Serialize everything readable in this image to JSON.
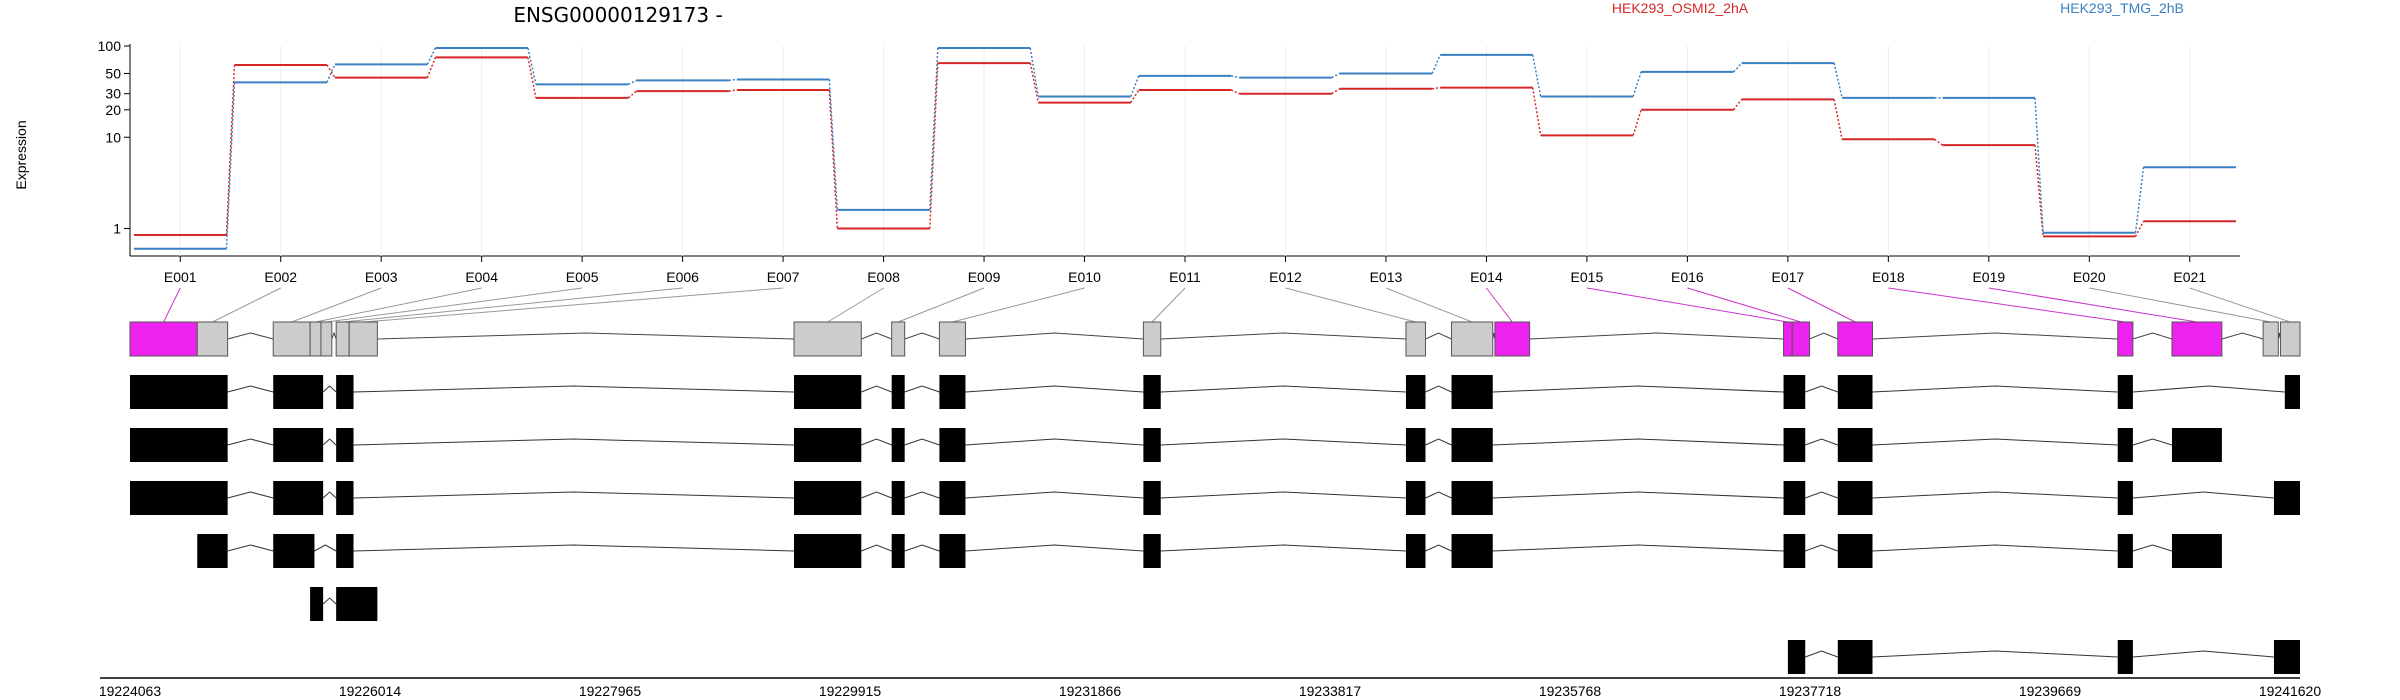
{
  "chart_data": {
    "type": "line",
    "title": "ENSG00000129173 -",
    "ylabel": "Expression",
    "y_scale": "log",
    "y_ticks": [
      1,
      10,
      20,
      30,
      50,
      100
    ],
    "y_tick_labels": [
      "1",
      "10",
      "20",
      "30",
      "50",
      "100"
    ],
    "ylim": [
      0.5,
      100
    ],
    "grid": "vertical",
    "legend_position": "top-right",
    "categories": [
      "E001",
      "E002",
      "E003",
      "E004",
      "E005",
      "E006",
      "E007",
      "E008",
      "E009",
      "E010",
      "E011",
      "E012",
      "E013",
      "E014",
      "E015",
      "E016",
      "E017",
      "E018",
      "E019",
      "E020",
      "E021"
    ],
    "series": [
      {
        "name": "HEK293_OSMI2_2hA",
        "color": "#d62728",
        "values": [
          0.85,
          62,
          45,
          75,
          27,
          32,
          33,
          1.0,
          65,
          24,
          33,
          30,
          34,
          35,
          10.5,
          20,
          26,
          9.5,
          8.2,
          0.82,
          1.2
        ]
      },
      {
        "name": "HEK293_TMG_2hB",
        "color": "#3a7fc1",
        "values": [
          0.6,
          40,
          63,
          95,
          38,
          42,
          43,
          1.6,
          95,
          28,
          47,
          45,
          50,
          80,
          28,
          52,
          65,
          27,
          27,
          0.9,
          4.7
        ]
      }
    ],
    "genomic_ticks": [
      "19224063",
      "19226014",
      "19227965",
      "19229915",
      "19231866",
      "19233817",
      "19235768",
      "19237718",
      "19239669",
      "19241620"
    ],
    "exon_segments": [
      {
        "label": "E001",
        "highlight": true
      },
      {
        "label": "E002",
        "highlight": false
      },
      {
        "label": "E003",
        "highlight": false
      },
      {
        "label": "E004",
        "highlight": false
      },
      {
        "label": "E005",
        "highlight": false
      },
      {
        "label": "E006",
        "highlight": false
      },
      {
        "label": "E007",
        "highlight": false
      },
      {
        "label": "E008",
        "highlight": false
      },
      {
        "label": "E009",
        "highlight": false
      },
      {
        "label": "E010",
        "highlight": false
      },
      {
        "label": "E011",
        "highlight": false
      },
      {
        "label": "E012",
        "highlight": false
      },
      {
        "label": "E013",
        "highlight": false
      },
      {
        "label": "E014",
        "highlight": true
      },
      {
        "label": "E015",
        "highlight": true
      },
      {
        "label": "E016",
        "highlight": true
      },
      {
        "label": "E017",
        "highlight": true
      },
      {
        "label": "E018",
        "highlight": true
      },
      {
        "label": "E019",
        "highlight": true
      },
      {
        "label": "E020",
        "highlight": false
      },
      {
        "label": "E021",
        "highlight": false
      }
    ],
    "colors": {
      "highlight": "#ee22ee",
      "exon": "#cccccc",
      "transcript": "#000000"
    }
  }
}
